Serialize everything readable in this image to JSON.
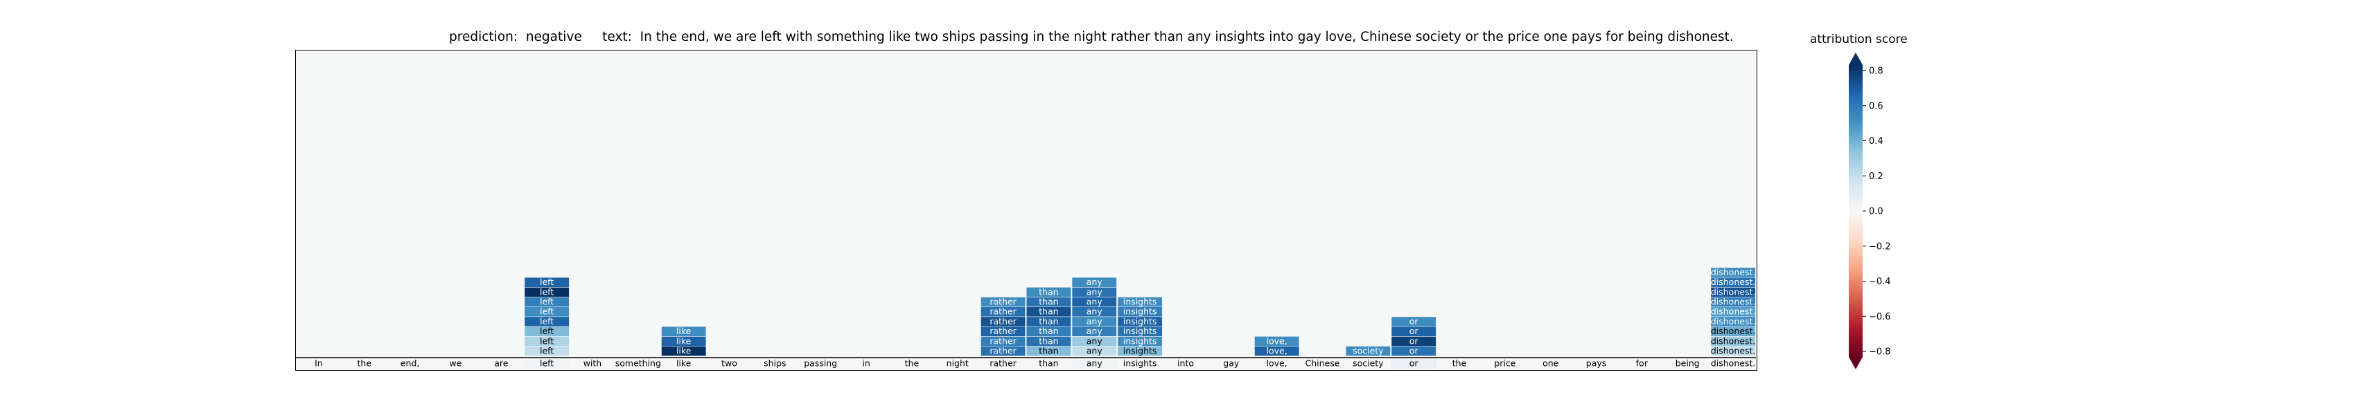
{
  "title": {
    "prediction_label": "prediction:",
    "prediction_value": "negative",
    "text_label": "text:",
    "text_value": "In the end, we are left with something like two ships passing in the night rather than any insights into gay love, Chinese society or the price one pays for being dishonest."
  },
  "chart_data": {
    "type": "heatmap",
    "tokens": [
      "In",
      "the",
      "end,",
      "we",
      "are",
      "left",
      "with",
      "something",
      "like",
      "two",
      "ships",
      "passing",
      "in",
      "the",
      "night",
      "rather",
      "than",
      "any",
      "insights",
      "into",
      "gay",
      "love,",
      "Chinese",
      "society",
      "or",
      "the",
      "price",
      "one",
      "pays",
      "for",
      "being",
      "dishonest."
    ],
    "rows_displayed": 11,
    "base_row_scores": [
      0,
      0,
      0,
      0,
      0,
      0.03,
      0,
      0,
      0,
      0,
      0,
      0,
      0,
      0,
      0,
      0,
      0,
      0.02,
      0,
      0,
      0,
      0,
      0,
      0,
      0.06,
      0,
      0,
      0,
      0,
      0,
      0,
      0
    ],
    "stacks": [
      {
        "token_index": 5,
        "label": "left",
        "scores_bottom_up": [
          0.2,
          0.25,
          0.35,
          0.65,
          0.5,
          0.55,
          0.8,
          0.65
        ]
      },
      {
        "token_index": 8,
        "label": "like",
        "scores_bottom_up": [
          0.8,
          0.65,
          0.5
        ]
      },
      {
        "token_index": 15,
        "label": "rather",
        "scores_bottom_up": [
          0.6,
          0.55,
          0.65,
          0.7,
          0.6,
          0.5
        ]
      },
      {
        "token_index": 16,
        "label": "than",
        "scores_bottom_up": [
          0.35,
          0.6,
          0.55,
          0.65,
          0.7,
          0.6,
          0.5
        ]
      },
      {
        "token_index": 17,
        "label": "any",
        "scores_bottom_up": [
          0.2,
          0.3,
          0.55,
          0.5,
          0.6,
          0.65,
          0.6,
          0.5
        ]
      },
      {
        "token_index": 18,
        "label": "insights",
        "scores_bottom_up": [
          0.35,
          0.5,
          0.6,
          0.65,
          0.55,
          0.5
        ]
      },
      {
        "token_index": 21,
        "label": "love,",
        "scores_bottom_up": [
          0.65,
          0.5
        ]
      },
      {
        "token_index": 23,
        "label": "society",
        "scores_bottom_up": [
          0.5
        ]
      },
      {
        "token_index": 24,
        "label": "or",
        "scores_bottom_up": [
          0.6,
          0.75,
          0.65,
          0.5
        ]
      },
      {
        "token_index": 31,
        "label": "dishonest.",
        "scores_bottom_up": [
          0.2,
          0.3,
          0.4,
          0.5,
          0.45,
          0.55,
          0.7,
          0.6,
          0.5
        ]
      }
    ],
    "colorbar": {
      "title": "attribution score",
      "range": [
        -0.8,
        0.8
      ],
      "ticks": [
        "0.8",
        "0.6",
        "0.4",
        "0.2",
        "0.0",
        "−0.2",
        "−0.4",
        "−0.6",
        "−0.8"
      ],
      "colormap": "RdBu",
      "extend": "both"
    }
  }
}
